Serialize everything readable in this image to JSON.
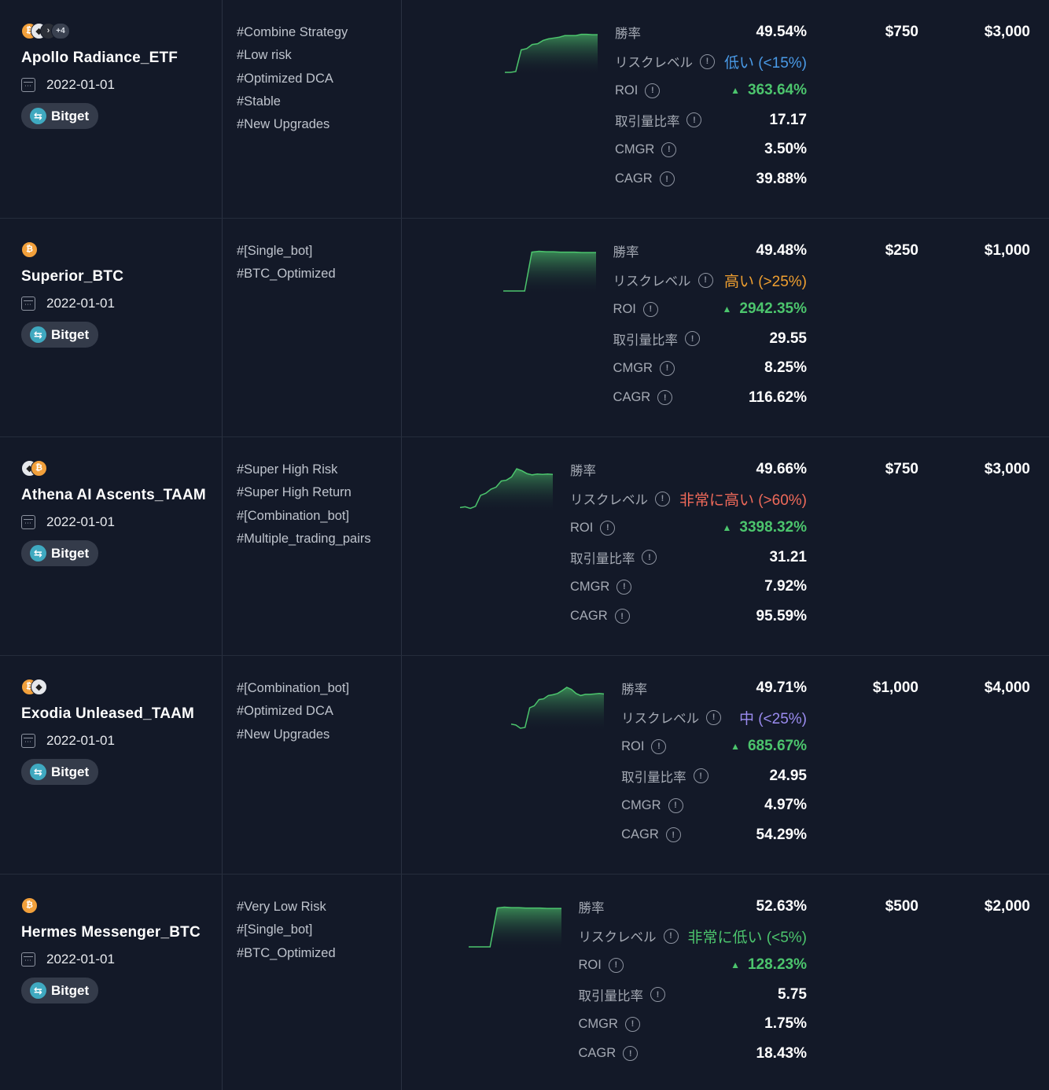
{
  "labels": {
    "win_rate": "勝率",
    "risk_level": "リスクレベル",
    "roi": "ROI",
    "volume_ratio": "取引量比率",
    "cmgr": "CMGR",
    "cagr": "CAGR"
  },
  "colors": {
    "roi": "#4cc56d",
    "risk_low": "#4a9be8",
    "risk_high": "#f0a030",
    "risk_very_high": "#f06a5a",
    "risk_medium": "#9b8cf0",
    "risk_very_low": "#4cc56d",
    "sparkline": "#4cc56d"
  },
  "bots": [
    {
      "name": "Apollo Radiance_ETF",
      "coins": [
        "btc",
        "wht",
        "drk"
      ],
      "more_coins": "+4",
      "date": "2022-01-01",
      "exchange": "Bitget",
      "tags": [
        "#Combine Strategy",
        "#Low risk",
        "#Optimized DCA",
        "#Stable",
        "#New Upgrades"
      ],
      "win_rate": "49.54%",
      "risk": "低い (<15%)",
      "risk_color": "#4a9be8",
      "roi": "363.64%",
      "volume_ratio": "17.17",
      "cmgr": "3.50%",
      "cagr": "39.88%",
      "price_1": "$750",
      "price_2": "$3,000",
      "sparkline": [
        0,
        0,
        0.02,
        0.55,
        0.58,
        0.68,
        0.7,
        0.78,
        0.82,
        0.84,
        0.86,
        0.9,
        0.9,
        0.9,
        0.93,
        0.93,
        0.92,
        0.92
      ]
    },
    {
      "name": "Superior_BTC",
      "coins": [
        "btc"
      ],
      "date": "2022-01-01",
      "exchange": "Bitget",
      "tags": [
        "#[Single_bot]",
        "#BTC_Optimized"
      ],
      "win_rate": "49.48%",
      "risk": "高い (>25%)",
      "risk_color": "#f0a030",
      "roi": "2942.35%",
      "volume_ratio": "29.55",
      "cmgr": "8.25%",
      "cagr": "116.62%",
      "price_1": "$250",
      "price_2": "$1,000",
      "sparkline": [
        0,
        0,
        0,
        0,
        0.95,
        0.97,
        0.96,
        0.96,
        0.95,
        0.95,
        0.95,
        0.94,
        0.94,
        0.94
      ]
    },
    {
      "name": "Athena AI Ascents_TAAM",
      "coins": [
        "wht",
        "btc"
      ],
      "date": "2022-01-01",
      "exchange": "Bitget",
      "tags": [
        "#Super High Risk",
        "#Super High Return",
        "#[Combination_bot]",
        "#Multiple_trading_pairs"
      ],
      "win_rate": "49.66%",
      "risk": "非常に高い (>60%)",
      "risk_color": "#f06a5a",
      "roi": "3398.32%",
      "volume_ratio": "31.21",
      "cmgr": "7.92%",
      "cagr": "95.59%",
      "price_1": "$750",
      "price_2": "$3,000",
      "sparkline": [
        0.05,
        0.07,
        0.03,
        0.08,
        0.35,
        0.4,
        0.5,
        0.55,
        0.7,
        0.72,
        0.8,
        1,
        0.95,
        0.88,
        0.85,
        0.87,
        0.86,
        0.87,
        0.86
      ]
    },
    {
      "name": "Exodia Unleased_TAAM",
      "coins": [
        "btc",
        "wht"
      ],
      "date": "2022-01-01",
      "exchange": "Bitget",
      "tags": [
        "#[Combination_bot]",
        "#Optimized DCA",
        "#New Upgrades"
      ],
      "win_rate": "49.71%",
      "risk": "中 (<25%)",
      "risk_color": "#9b8cf0",
      "roi": "685.67%",
      "volume_ratio": "24.95",
      "cmgr": "4.97%",
      "cagr": "54.29%",
      "price_1": "$1,000",
      "price_2": "$4,000",
      "sparkline": [
        0.1,
        0.08,
        0,
        0.02,
        0.5,
        0.55,
        0.7,
        0.72,
        0.8,
        0.82,
        0.85,
        0.92,
        1,
        0.95,
        0.85,
        0.8,
        0.83,
        0.83,
        0.84,
        0.85,
        0.84
      ]
    },
    {
      "name": "Hermes Messenger_BTC",
      "coins": [
        "btc"
      ],
      "date": "2022-01-01",
      "exchange": "Bitget",
      "tags": [
        "#Very Low Risk",
        "#[Single_bot]",
        "#BTC_Optimized"
      ],
      "win_rate": "52.63%",
      "risk": "非常に低い (<5%)",
      "risk_color": "#4cc56d",
      "roi": "128.23%",
      "volume_ratio": "5.75",
      "cmgr": "1.75%",
      "cagr": "18.43%",
      "price_1": "$500",
      "price_2": "$2,000",
      "sparkline": [
        0,
        0,
        0,
        0,
        0.95,
        0.97,
        0.96,
        0.96,
        0.95,
        0.95,
        0.95,
        0.94,
        0.94,
        0.94
      ]
    }
  ]
}
